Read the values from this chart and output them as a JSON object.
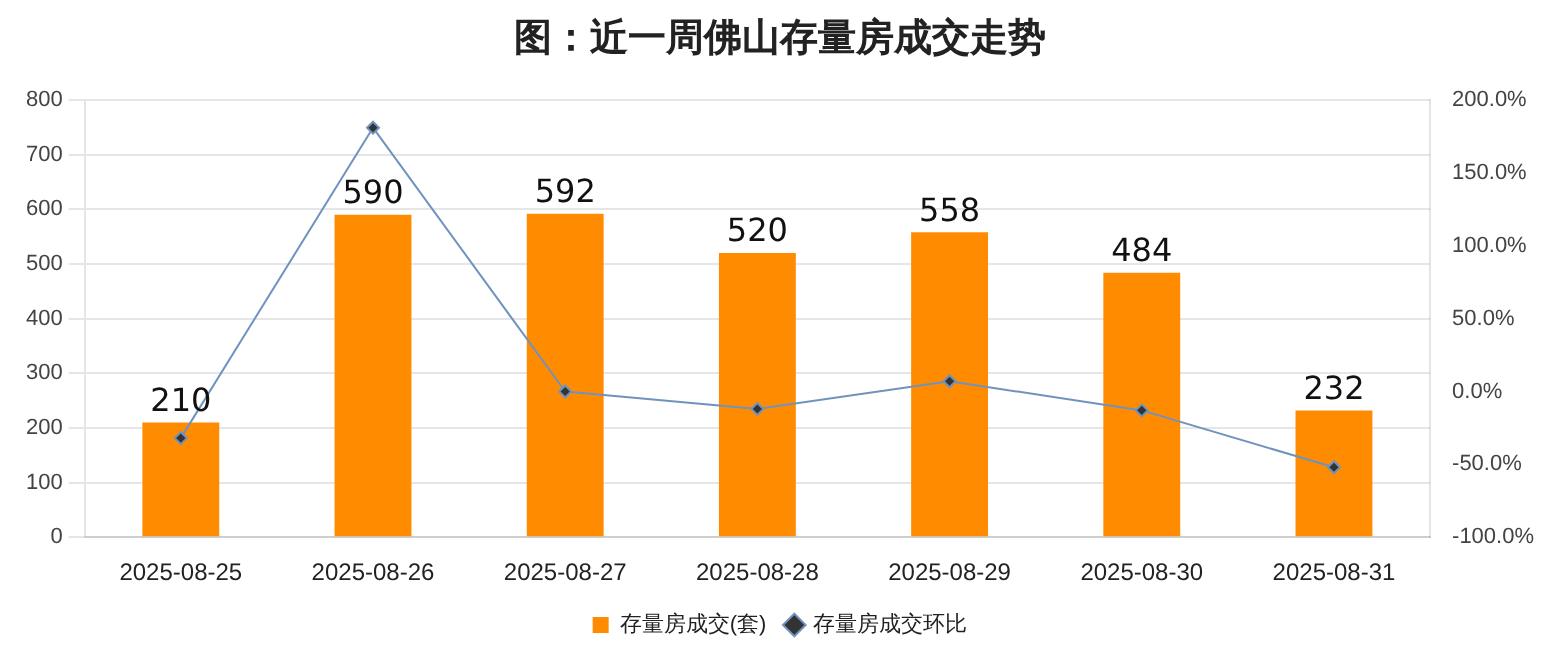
{
  "chart_data": {
    "type": "bar",
    "title": "图：近一周佛山存量房成交走势",
    "categories": [
      "2025-08-25",
      "2025-08-26",
      "2025-08-27",
      "2025-08-28",
      "2025-08-29",
      "2025-08-30",
      "2025-08-31"
    ],
    "series": [
      {
        "name": "存量房成交(套)",
        "color": "#ff8c00",
        "values": [
          210,
          590,
          592,
          520,
          558,
          484,
          232
        ],
        "data_labels": true
      },
      {
        "name": "存量房成交环比",
        "type": "line",
        "axis": "y2",
        "color": "#6f93be",
        "marker": "diamond",
        "values": [
          -32,
          181,
          0,
          -12,
          7,
          -13,
          -52
        ]
      }
    ],
    "ylim": [
      0,
      800
    ],
    "yticks": [
      0,
      100,
      200,
      300,
      400,
      500,
      600,
      700,
      800
    ],
    "y2lim": [
      -100,
      200
    ],
    "y2ticks": [
      {
        "value": -100,
        "label": "-100.0%"
      },
      {
        "value": -50,
        "label": "-50.0%"
      },
      {
        "value": 0,
        "label": "0.0%"
      },
      {
        "value": 50,
        "label": "50.0%"
      },
      {
        "value": 100,
        "label": "100.0%"
      },
      {
        "value": 150,
        "label": "150.0%"
      },
      {
        "value": 200,
        "label": "200.0%"
      }
    ],
    "grid": "y",
    "legend": "bottom"
  }
}
